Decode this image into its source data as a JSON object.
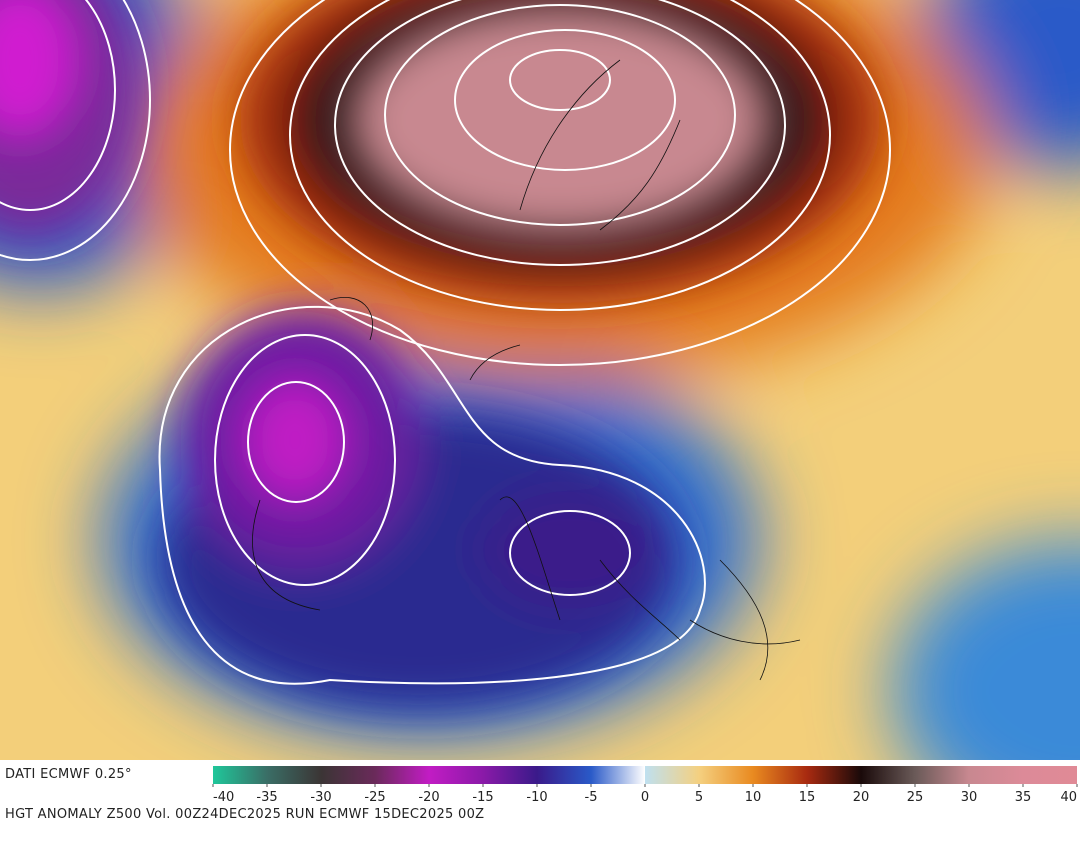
{
  "source": "DATI ECMWF 0.25°",
  "colorbar": {
    "lim": [
      -40,
      40
    ],
    "ticks": [
      -40,
      -35,
      -30,
      -25,
      -20,
      -15,
      -10,
      -5,
      0,
      5,
      10,
      15,
      20,
      25,
      30,
      35,
      40
    ],
    "colors": [
      "#1fc79a",
      "#3a6e66",
      "#3b3535",
      "#6a2a5a",
      "#c21cc4",
      "#8a1aa8",
      "#3a1a8a",
      "#2a5ac8",
      "#ffffff",
      "#f4d080",
      "#e98a20",
      "#a82a10",
      "#1a0a0a",
      "#6a5a58",
      "#c88890",
      "#dc8a98",
      "#e08a96"
    ]
  },
  "caption": "HGT ANOMALY Z500 Vol. 00Z24DEC2025 RUN ECMWF 15DEC2025 00Z"
}
